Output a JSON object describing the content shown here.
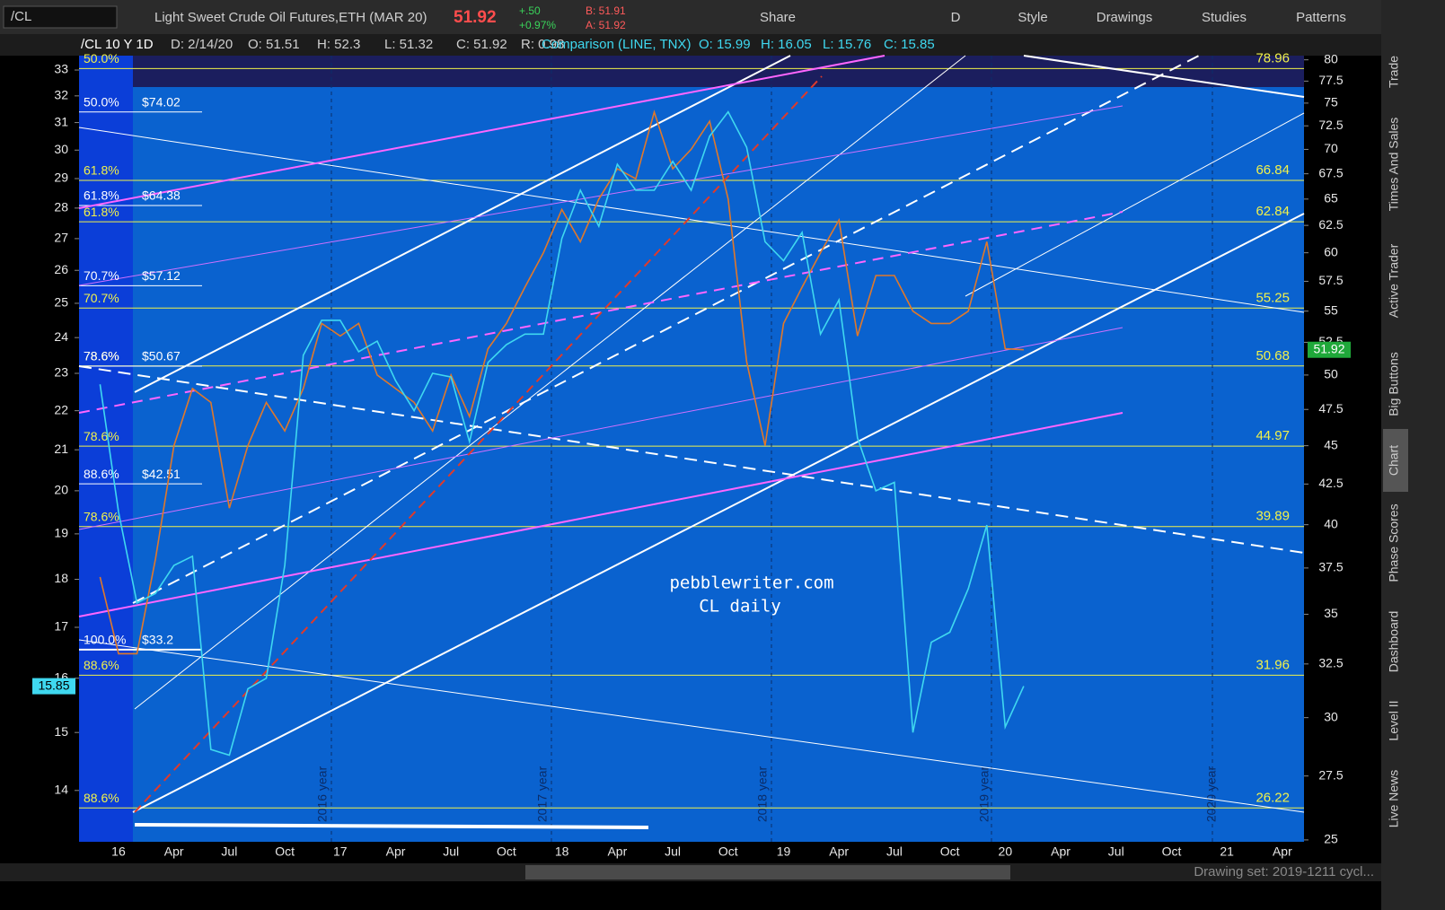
{
  "toolbar": {
    "symbol": "/CL",
    "description": "Light Sweet Crude Oil Futures,ETH (MAR 20)",
    "last": "51.92",
    "change": "+.50",
    "change_pct": "+0.97%",
    "bid": "B: 51.91",
    "ask": "A: 51.92",
    "buttons": [
      "Share",
      "D",
      "Style",
      "Drawings",
      "Studies",
      "Patterns"
    ]
  },
  "info_bar": [
    "/CL 10 Y 1D",
    "D: 2/14/20",
    "O: 51.51",
    "H: 52.3",
    "L: 51.32",
    "C: 51.92",
    "R: 0.98",
    "Comparison (LINE, TNX)",
    "O: 15.99",
    "H: 16.05",
    "L: 15.76",
    "C: 15.85"
  ],
  "chart_data": {
    "type": "line",
    "log_scale": true,
    "categories": [
      null,
      "16",
      null,
      null,
      "Apr",
      null,
      null,
      "Jul",
      null,
      null,
      "Oct",
      null,
      null,
      "17",
      null,
      null,
      "Apr",
      null,
      null,
      "Jul",
      null,
      null,
      "Oct",
      null,
      null,
      "18",
      null,
      null,
      "Apr",
      null,
      null,
      "Jul",
      null,
      null,
      "Oct",
      null,
      null,
      "19",
      null,
      null,
      "Apr",
      null,
      null,
      "Jul",
      null,
      null,
      "Oct",
      null,
      null,
      "20",
      null,
      null,
      "Apr",
      null,
      null,
      "Jul",
      null,
      null,
      "Oct",
      null,
      null,
      "21",
      null,
      null,
      "Apr"
    ],
    "series": [
      {
        "name": "/CL",
        "color": "#e0782a",
        "values": [
          37,
          33,
          33,
          38,
          45,
          49,
          48,
          41,
          45,
          48,
          46,
          49,
          54,
          53,
          54,
          50,
          49,
          48,
          46,
          50,
          47,
          52,
          54,
          57,
          60,
          64,
          61,
          65,
          68,
          67,
          74,
          68,
          70,
          73,
          65,
          51,
          45,
          54,
          57,
          60,
          63,
          53,
          58,
          58,
          55,
          54,
          54,
          55,
          61,
          52,
          51.92,
          null,
          null,
          null,
          null,
          null,
          null,
          null,
          null,
          null,
          null,
          null,
          null,
          null,
          null
        ]
      },
      {
        "name": "TNX",
        "color": "#3fd8f0",
        "axis": "y2",
        "values": [
          22.7,
          19.5,
          17.5,
          17.7,
          18.3,
          18.5,
          14.7,
          14.6,
          15.8,
          16,
          18.3,
          23.5,
          24.5,
          24.5,
          23.6,
          23.9,
          22.8,
          22,
          23,
          22.9,
          21.2,
          23.3,
          23.8,
          24.1,
          24.1,
          27,
          28.6,
          27.4,
          29.5,
          28.6,
          28.6,
          29.6,
          28.6,
          30.5,
          31.4,
          30.1,
          26.9,
          26.3,
          27.2,
          24.1,
          25.1,
          21.3,
          20,
          20.2,
          15,
          16.7,
          16.9,
          17.8,
          19.2,
          15.1,
          15.85,
          null,
          null,
          null,
          null,
          null,
          null,
          null,
          null,
          null,
          null,
          null,
          null,
          null,
          null
        ]
      }
    ],
    "ylim": [
      24.93,
      80.5
    ],
    "yticks": [
      25,
      27.5,
      30,
      32.5,
      35,
      37.5,
      40,
      42.5,
      45,
      47.5,
      50,
      52.5,
      55,
      57.5,
      60,
      62.5,
      65,
      67.5,
      70,
      72.5,
      75,
      77.5,
      80
    ],
    "y2lim": [
      13.17,
      33.57
    ],
    "y2ticks": [
      14,
      15,
      16,
      17,
      18,
      19,
      20,
      21,
      22,
      23,
      24,
      25,
      26,
      27,
      28,
      29,
      30,
      31,
      32,
      33
    ],
    "fib_levels": [
      {
        "value": 78.96,
        "percent": "50.0%"
      },
      {
        "value": 66.84,
        "percent": "61.8%"
      },
      {
        "value": 62.84,
        "percent": "61.8%"
      },
      {
        "value": 55.25,
        "percent": "70.7%"
      },
      {
        "value": 50.68,
        "percent": "78.6%"
      },
      {
        "value": 44.97,
        "percent": "78.6%"
      },
      {
        "value": 39.89,
        "percent": "78.6%"
      },
      {
        "value": 31.96,
        "percent": "88.6%"
      },
      {
        "value": 26.22,
        "percent": "88.6%"
      }
    ],
    "retracements": [
      {
        "value": 74.02,
        "label": "$74.02",
        "percent": "50.0%"
      },
      {
        "value": 64.38,
        "label": "$64.38",
        "percent": "61.8%"
      },
      {
        "value": 57.12,
        "label": "$57.12",
        "percent": "70.7%"
      },
      {
        "value": 50.67,
        "label": "$50.67",
        "percent": "78.6%"
      },
      {
        "value": 42.51,
        "label": "$42.51",
        "percent": "88.6%"
      },
      {
        "value": 33.2,
        "label": "$33.2",
        "percent": "100.0%"
      }
    ],
    "year_labels": [
      "2016 year",
      "2017 year",
      "2018 year",
      "2019 year",
      "2020 year"
    ]
  },
  "watermark": [
    "pebblewriter.com",
    "CL daily"
  ],
  "sidebar_tabs": [
    "Trade",
    "Times And Sales",
    "Active Trader",
    "Big Buttons",
    "Chart",
    "Phase Scores",
    "Dashboard",
    "Level II",
    "Live News"
  ],
  "status_bar": "Drawing set: 2019-1211 cycl..."
}
